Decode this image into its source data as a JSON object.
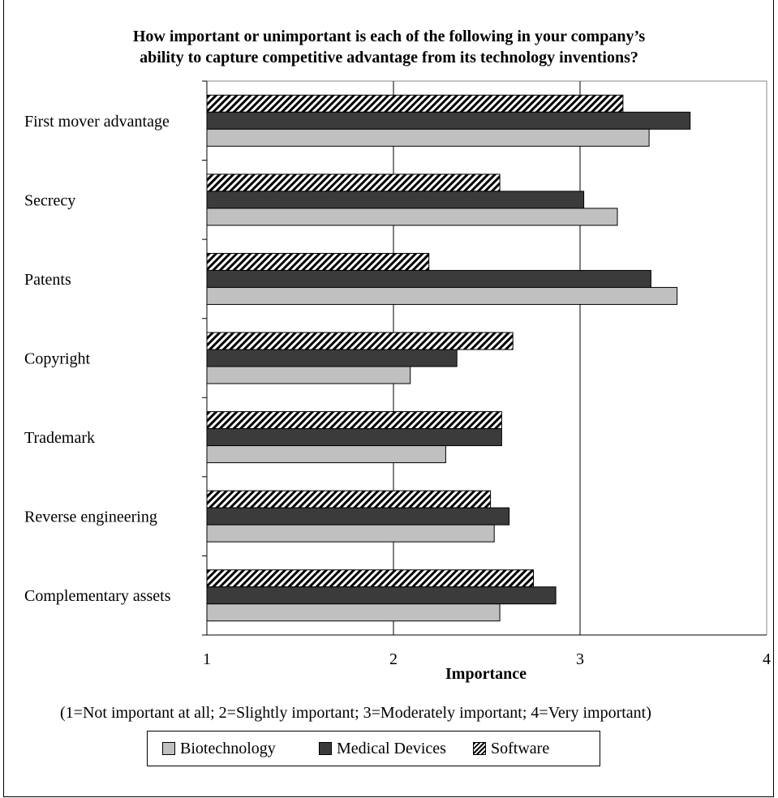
{
  "chart_data": {
    "type": "bar",
    "orientation": "horizontal",
    "title": "How important or unimportant is each of the following in your company’s ability to capture competitive advantage from its technology inventions?",
    "title_lines": [
      "How important or unimportant is each of the following in your company’s",
      "ability to capture competitive advantage from its technology inventions?"
    ],
    "xlabel": "Importance",
    "ylabel": "",
    "xlim": [
      1,
      4
    ],
    "xticks": [
      1,
      2,
      3,
      4
    ],
    "categories": [
      "First mover advantage",
      "Secrecy",
      "Patents",
      "Copyright",
      "Trademark",
      "Reverse engineering",
      "Complementary assets"
    ],
    "series": [
      {
        "name": "Biotechnology",
        "color": "#c0c0c0",
        "pattern": "solid",
        "values": [
          3.37,
          3.2,
          3.52,
          2.09,
          2.28,
          2.54,
          2.57
        ]
      },
      {
        "name": "Medical Devices",
        "color": "#3b3b3b",
        "pattern": "solid",
        "values": [
          3.59,
          3.02,
          3.38,
          2.34,
          2.58,
          2.62,
          2.87
        ]
      },
      {
        "name": "Software",
        "color": "#000000",
        "pattern": "diagonal-hatch",
        "values": [
          3.23,
          2.57,
          2.19,
          2.64,
          2.58,
          2.52,
          2.75
        ]
      }
    ],
    "grid": true,
    "legend_position": "bottom",
    "note": "(1=Not important at all; 2=Slightly important; 3=Moderately important; 4=Very important)"
  }
}
